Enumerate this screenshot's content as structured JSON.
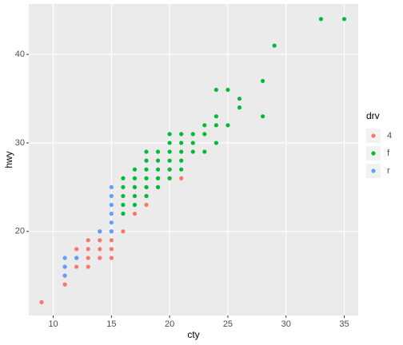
{
  "chart_data": {
    "type": "scatter",
    "x_label": "cty",
    "y_label": "hwy",
    "legend_title": "drv",
    "xlim": [
      7.9,
      36.2
    ],
    "ylim": [
      10.5,
      45.7
    ],
    "xticks": [
      10,
      15,
      20,
      25,
      30,
      35
    ],
    "yticks": [
      20,
      30,
      40
    ],
    "grid": true,
    "legend": "right",
    "series": [
      {
        "name": "4",
        "color": "#F8766D",
        "x": [
          9,
          11,
          11,
          11,
          12,
          12,
          12,
          13,
          13,
          13,
          13,
          14,
          14,
          14,
          14,
          15,
          15,
          15,
          15,
          16,
          17,
          18,
          18,
          19,
          20,
          20,
          21,
          17,
          18,
          19
        ],
        "values": [
          12,
          14,
          15,
          16,
          16,
          17,
          18,
          16,
          17,
          18,
          19,
          17,
          18,
          19,
          20,
          17,
          18,
          19,
          20,
          20,
          22,
          23,
          24,
          25,
          26,
          27,
          26,
          25,
          25,
          26
        ]
      },
      {
        "name": "f",
        "color": "#00BA38",
        "x": [
          16,
          16,
          16,
          16,
          16,
          17,
          17,
          17,
          17,
          17,
          18,
          18,
          18,
          18,
          18,
          18,
          19,
          19,
          19,
          19,
          19,
          20,
          20,
          20,
          20,
          20,
          20,
          21,
          21,
          21,
          21,
          21,
          22,
          22,
          22,
          23,
          23,
          23,
          24,
          24,
          24,
          24,
          25,
          25,
          26,
          26,
          28,
          28,
          29,
          33,
          35
        ],
        "values": [
          22,
          23,
          24,
          25,
          26,
          23,
          24,
          25,
          26,
          27,
          24,
          25,
          26,
          27,
          28,
          29,
          25,
          26,
          27,
          28,
          29,
          26,
          27,
          28,
          29,
          30,
          31,
          27,
          28,
          29,
          30,
          31,
          29,
          30,
          31,
          29,
          31,
          32,
          30,
          32,
          33,
          36,
          32,
          36,
          34,
          35,
          33,
          37,
          41,
          44,
          44
        ]
      },
      {
        "name": "r",
        "color": "#619CFF",
        "x": [
          11,
          11,
          11,
          12,
          14,
          15,
          15,
          15,
          15,
          15,
          15
        ],
        "values": [
          15,
          16,
          17,
          17,
          20,
          20,
          21,
          22,
          23,
          24,
          25
        ]
      }
    ]
  }
}
